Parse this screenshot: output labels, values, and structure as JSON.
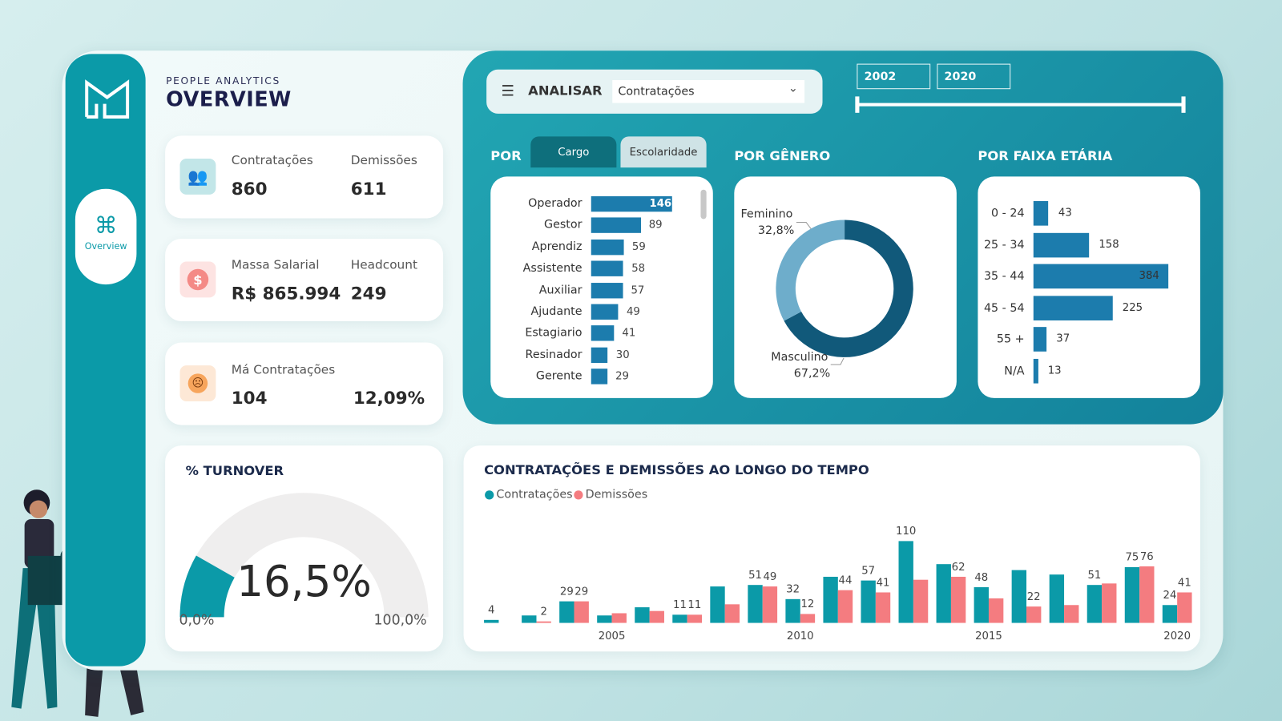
{
  "colors": {
    "accent": "#0b9aa8",
    "contratacoes": "#0b9aa8",
    "demissoes": "#f47c80",
    "bar": "#1c7cad",
    "masculino": "#11597a",
    "feminino": "#6eadcb"
  },
  "header": {
    "subtitle": "PEOPLE ANALYTICS",
    "title": "OVERVIEW"
  },
  "sidebar": {
    "logo_icon": "m-logo-icon",
    "items": [
      {
        "label": "Overview",
        "icon": "command-icon",
        "active": true
      }
    ]
  },
  "kpis": {
    "card1": {
      "icon": "people-icon",
      "label_a": "Contratações",
      "value_a": "860",
      "label_b": "Demissões",
      "value_b": "611"
    },
    "card2": {
      "icon": "dollar-icon",
      "label_a": "Massa Salarial",
      "value_a": "R$ 865.994",
      "label_b": "Headcount",
      "value_b": "249"
    },
    "card3": {
      "icon": "sad-face-icon",
      "label_a": "Má Contratações",
      "value_a": "104",
      "value_b": "12,09%"
    }
  },
  "turnover": {
    "title": "% TURNOVER",
    "value": "16,5%",
    "fraction": 0.165,
    "min_label": "0,0%",
    "max_label": "100,0%"
  },
  "filters": {
    "analisar_label": "ANALISAR",
    "analisar_selected": "Contratações",
    "year_start": "2002",
    "year_end": "2020"
  },
  "por": {
    "label": "POR",
    "tabs": [
      {
        "label": "Cargo",
        "active": true
      },
      {
        "label": "Escolaridade",
        "active": false
      }
    ]
  },
  "cargo": {
    "categories": [
      "Operador",
      "Gestor",
      "Aprendiz",
      "Assistente",
      "Auxiliar",
      "Ajudante",
      "Estagiario",
      "Resinador",
      "Gerente"
    ],
    "values": [
      146,
      89,
      59,
      58,
      57,
      49,
      41,
      30,
      29
    ]
  },
  "genero": {
    "title": "POR GÊNERO",
    "slices": [
      {
        "label": "Feminino",
        "pct_label": "32,8%",
        "value": 32.8
      },
      {
        "label": "Masculino",
        "pct_label": "67,2%",
        "value": 67.2
      }
    ]
  },
  "faixa": {
    "title": "POR FAIXA ETÁRIA",
    "categories": [
      "0 - 24",
      "25 - 34",
      "35 - 44",
      "45 - 54",
      "55 +",
      "N/A"
    ],
    "values": [
      43,
      158,
      384,
      225,
      37,
      13
    ]
  },
  "chart_data": {
    "type": "bar",
    "title": "CONTRATAÇÕES E DEMISSÕES AO LONGO DO TEMPO",
    "legend_position": "top-left",
    "x": [
      2002,
      2003,
      2004,
      2005,
      2006,
      2007,
      2008,
      2009,
      2010,
      2011,
      2012,
      2013,
      2014,
      2015,
      2016,
      2017,
      2018,
      2019,
      2020
    ],
    "tick_labels": [
      "2005",
      "2010",
      "2015",
      "2020"
    ],
    "series": [
      {
        "name": "Contratações",
        "values": [
          4,
          10,
          29,
          10,
          21,
          11,
          49,
          51,
          32,
          62,
          57,
          110,
          79,
          48,
          71,
          65,
          51,
          75,
          24
        ],
        "data_labels": [
          "4",
          null,
          "29",
          null,
          null,
          "11",
          null,
          "51",
          "32",
          null,
          "57",
          "110",
          null,
          "48",
          null,
          null,
          "51",
          "75",
          "24"
        ]
      },
      {
        "name": "Demissões",
        "values": [
          0,
          2,
          29,
          13,
          16,
          11,
          25,
          49,
          12,
          44,
          41,
          58,
          62,
          33,
          22,
          24,
          53,
          76,
          41
        ],
        "data_labels": [
          null,
          "2",
          "29",
          null,
          null,
          "11",
          null,
          "49",
          "12",
          "44",
          "41",
          null,
          "62",
          null,
          "22",
          null,
          null,
          "76",
          "41"
        ]
      }
    ]
  }
}
